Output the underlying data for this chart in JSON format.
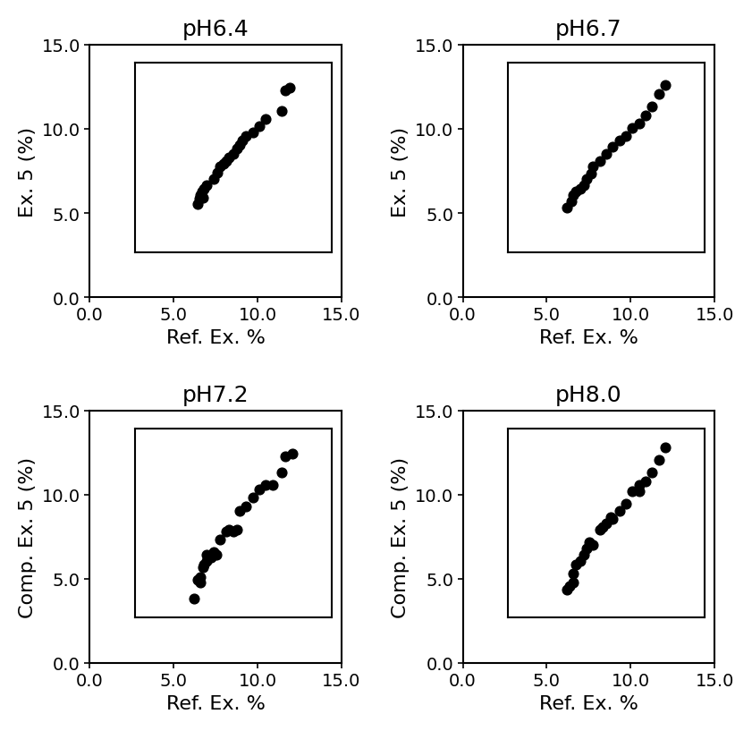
{
  "panels": [
    {
      "title": "pH6.4",
      "ylabel": "Ex. 5 (%)",
      "xlabel": "Ref. Ex. %",
      "x": [
        4.8,
        4.9,
        5.0,
        5.1,
        5.2,
        5.3,
        5.5,
        6.0,
        6.3,
        6.5,
        6.8,
        7.0,
        7.2,
        7.5,
        7.8,
        8.0,
        8.2,
        8.5,
        9.0,
        9.5,
        10.0,
        11.2,
        11.5,
        11.8
      ],
      "y": [
        3.8,
        4.2,
        4.5,
        4.8,
        4.3,
        5.0,
        5.3,
        5.8,
        6.3,
        6.8,
        7.0,
        7.2,
        7.5,
        7.8,
        8.2,
        8.5,
        8.8,
        9.2,
        9.5,
        10.0,
        10.5,
        11.2,
        12.8,
        13.0
      ]
    },
    {
      "title": "pH6.7",
      "ylabel": "Ex. 5 (%)",
      "xlabel": "Ref. Ex. %",
      "x": [
        4.5,
        4.8,
        5.0,
        5.2,
        5.5,
        5.8,
        6.0,
        6.3,
        6.5,
        7.0,
        7.5,
        8.0,
        8.5,
        9.0,
        9.5,
        10.0,
        10.5,
        11.0,
        11.5,
        12.0
      ],
      "y": [
        3.5,
        4.0,
        4.5,
        4.8,
        5.0,
        5.3,
        5.8,
        6.2,
        6.8,
        7.2,
        7.8,
        8.3,
        8.8,
        9.2,
        9.8,
        10.2,
        10.8,
        11.5,
        12.5,
        13.2
      ]
    },
    {
      "title": "pH7.2",
      "ylabel": "Comp. Ex. 5 (%)",
      "xlabel": "Ref. Ex. %",
      "x": [
        4.5,
        4.8,
        5.0,
        5.0,
        5.2,
        5.3,
        5.5,
        5.5,
        5.8,
        6.0,
        6.2,
        6.5,
        7.0,
        7.2,
        7.5,
        7.8,
        8.0,
        8.5,
        9.0,
        9.5,
        10.0,
        10.5,
        11.2,
        11.5,
        12.0
      ],
      "y": [
        1.5,
        3.0,
        2.8,
        3.2,
        4.0,
        4.2,
        4.5,
        5.0,
        4.8,
        5.2,
        5.0,
        6.2,
        6.8,
        7.0,
        6.8,
        7.0,
        8.5,
        8.8,
        9.5,
        10.2,
        10.5,
        10.5,
        11.5,
        12.8,
        13.0
      ]
    },
    {
      "title": "pH8.0",
      "ylabel": "Comp. Ex. 5 (%)",
      "xlabel": "Ref. Ex. %",
      "x": [
        4.5,
        4.7,
        5.0,
        5.0,
        5.2,
        5.5,
        5.8,
        6.0,
        6.2,
        6.5,
        7.0,
        7.2,
        7.5,
        7.8,
        8.0,
        8.5,
        9.0,
        9.5,
        10.0,
        10.0,
        10.5,
        11.0,
        11.5,
        12.0
      ],
      "y": [
        2.2,
        2.5,
        2.8,
        3.5,
        4.2,
        4.5,
        5.0,
        5.5,
        6.0,
        5.8,
        7.0,
        7.2,
        7.5,
        8.0,
        7.8,
        8.5,
        9.0,
        10.0,
        10.0,
        10.5,
        10.8,
        11.5,
        12.5,
        13.5
      ]
    }
  ],
  "outer_xlim": [
    0.0,
    15.0
  ],
  "outer_ylim": [
    0.0,
    15.0
  ],
  "outer_xticks": [
    0.0,
    5.0,
    10.0,
    15.0
  ],
  "outer_yticks": [
    0.0,
    5.0,
    10.0,
    15.0
  ],
  "marker_color": "#000000",
  "marker_size": 60,
  "background_color": "#ffffff",
  "title_fontsize": 18,
  "label_fontsize": 16,
  "tick_fontsize": 14
}
